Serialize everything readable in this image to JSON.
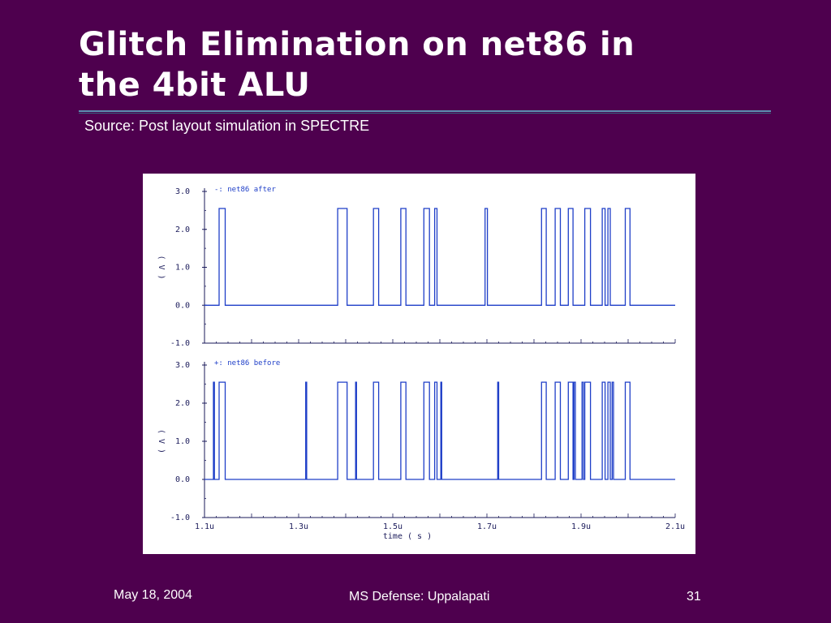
{
  "slide": {
    "title_line1": "Glitch Elimination on net86 in",
    "title_line2": "the 4bit ALU",
    "subtitle": "Source: Post layout simulation in SPECTRE"
  },
  "footer": {
    "date": "May 18, 2004",
    "center": "MS Defense: Uppalapati",
    "page": "31"
  },
  "colors": {
    "background": "#4e004e",
    "trace": "#1f3fc8",
    "axis": "#1a1a5a"
  },
  "chart_data": [
    {
      "type": "line",
      "legend": "-: net86  after",
      "ylabel": "( V )",
      "xlim": [
        1.1,
        2.1
      ],
      "ylim": [
        -1.0,
        3.0
      ],
      "yticks": [
        "3.0",
        "2.0",
        "1.0",
        "0.0",
        "-1.0"
      ],
      "yticks_values": [
        3.0,
        2.0,
        1.0,
        0.0,
        -1.0
      ],
      "low": 0.0,
      "high": 2.55,
      "pulses": [
        [
          1.131,
          1.144
        ],
        [
          1.383,
          1.403
        ],
        [
          1.459,
          1.47
        ],
        [
          1.517,
          1.528
        ],
        [
          1.566,
          1.578
        ],
        [
          1.589,
          1.594
        ],
        [
          1.696,
          1.701
        ],
        [
          1.816,
          1.826
        ],
        [
          1.845,
          1.856
        ],
        [
          1.873,
          1.883
        ],
        [
          1.908,
          1.92
        ],
        [
          1.945,
          1.951
        ],
        [
          1.957,
          1.962
        ],
        [
          1.994,
          2.004
        ]
      ]
    },
    {
      "type": "line",
      "legend": "+: net86  before",
      "ylabel": "( V )",
      "xlabel": "time ( s )",
      "xlim": [
        1.1,
        2.1
      ],
      "ylim": [
        -1.0,
        3.0
      ],
      "xticks": [
        "1.1u",
        "1.3u",
        "1.5u",
        "1.7u",
        "1.9u",
        "2.1u"
      ],
      "xticks_values": [
        1.1,
        1.3,
        1.5,
        1.7,
        1.9,
        2.1
      ],
      "yticks": [
        "3.0",
        "2.0",
        "1.0",
        "0.0",
        "-1.0"
      ],
      "yticks_values": [
        3.0,
        2.0,
        1.0,
        0.0,
        -1.0
      ],
      "low": 0.0,
      "high": 2.55,
      "pulses": [
        [
          1.119,
          1.121
        ],
        [
          1.131,
          1.144
        ],
        [
          1.315,
          1.317
        ],
        [
          1.383,
          1.403
        ],
        [
          1.421,
          1.423
        ],
        [
          1.459,
          1.47
        ],
        [
          1.517,
          1.528
        ],
        [
          1.566,
          1.578
        ],
        [
          1.589,
          1.594
        ],
        [
          1.602,
          1.604
        ],
        [
          1.723,
          1.725
        ],
        [
          1.816,
          1.826
        ],
        [
          1.845,
          1.856
        ],
        [
          1.873,
          1.883
        ],
        [
          1.885,
          1.888
        ],
        [
          1.902,
          1.905
        ],
        [
          1.908,
          1.92
        ],
        [
          1.945,
          1.951
        ],
        [
          1.957,
          1.962
        ],
        [
          1.966,
          1.969
        ],
        [
          1.994,
          2.004
        ]
      ]
    }
  ]
}
